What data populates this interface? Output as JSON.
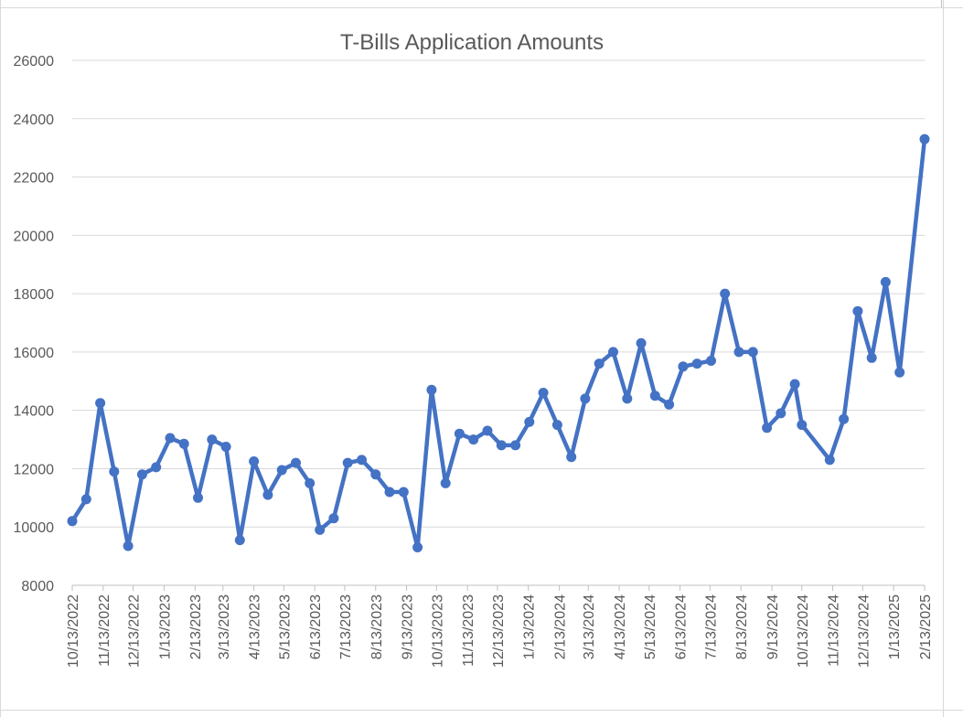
{
  "chart_data": {
    "type": "line",
    "title": "T-Bills Application Amounts",
    "xlabel": "",
    "ylabel": "",
    "ylim": [
      8000,
      26000
    ],
    "yticks": [
      8000,
      10000,
      12000,
      14000,
      16000,
      18000,
      20000,
      22000,
      24000,
      26000
    ],
    "grid": true,
    "legend": "none",
    "x_tick_labels": [
      "10/13/2022",
      "11/13/2022",
      "12/13/2022",
      "1/13/2023",
      "2/13/2023",
      "3/13/2023",
      "4/13/2023",
      "5/13/2023",
      "6/13/2023",
      "7/13/2023",
      "8/13/2023",
      "9/13/2023",
      "10/13/2023",
      "11/13/2023",
      "12/13/2023",
      "1/13/2024",
      "2/13/2024",
      "3/13/2024",
      "4/13/2024",
      "5/13/2024",
      "6/13/2024",
      "7/13/2024",
      "8/13/2024",
      "9/13/2024",
      "10/13/2024",
      "11/13/2024",
      "12/13/2024",
      "1/13/2025",
      "2/13/2025"
    ],
    "series": [
      {
        "color": "#4472c4",
        "points": [
          {
            "x": "2022-10-13",
            "y": 10200
          },
          {
            "x": "2022-10-27",
            "y": 10950
          },
          {
            "x": "2022-11-10",
            "y": 14250
          },
          {
            "x": "2022-11-24",
            "y": 11900
          },
          {
            "x": "2022-12-08",
            "y": 9350
          },
          {
            "x": "2022-12-22",
            "y": 11800
          },
          {
            "x": "2023-01-05",
            "y": 12050
          },
          {
            "x": "2023-01-19",
            "y": 13050
          },
          {
            "x": "2023-02-02",
            "y": 12850
          },
          {
            "x": "2023-02-16",
            "y": 11000
          },
          {
            "x": "2023-03-02",
            "y": 13000
          },
          {
            "x": "2023-03-16",
            "y": 12750
          },
          {
            "x": "2023-03-30",
            "y": 9550
          },
          {
            "x": "2023-04-13",
            "y": 12250
          },
          {
            "x": "2023-04-27",
            "y": 11100
          },
          {
            "x": "2023-05-11",
            "y": 11950
          },
          {
            "x": "2023-05-25",
            "y": 12200
          },
          {
            "x": "2023-06-08",
            "y": 11500
          },
          {
            "x": "2023-06-18",
            "y": 9900
          },
          {
            "x": "2023-07-02",
            "y": 10300
          },
          {
            "x": "2023-07-16",
            "y": 12200
          },
          {
            "x": "2023-07-30",
            "y": 12300
          },
          {
            "x": "2023-08-13",
            "y": 11800
          },
          {
            "x": "2023-08-27",
            "y": 11200
          },
          {
            "x": "2023-09-10",
            "y": 11200
          },
          {
            "x": "2023-09-24",
            "y": 9300
          },
          {
            "x": "2023-10-08",
            "y": 14700
          },
          {
            "x": "2023-10-22",
            "y": 11500
          },
          {
            "x": "2023-11-05",
            "y": 13200
          },
          {
            "x": "2023-11-19",
            "y": 13000
          },
          {
            "x": "2023-12-03",
            "y": 13300
          },
          {
            "x": "2023-12-17",
            "y": 12800
          },
          {
            "x": "2023-12-31",
            "y": 12800
          },
          {
            "x": "2024-01-14",
            "y": 13600
          },
          {
            "x": "2024-01-28",
            "y": 14600
          },
          {
            "x": "2024-02-11",
            "y": 13500
          },
          {
            "x": "2024-02-25",
            "y": 12400
          },
          {
            "x": "2024-03-10",
            "y": 14400
          },
          {
            "x": "2024-03-24",
            "y": 15600
          },
          {
            "x": "2024-04-07",
            "y": 16000
          },
          {
            "x": "2024-04-21",
            "y": 14400
          },
          {
            "x": "2024-05-05",
            "y": 16300
          },
          {
            "x": "2024-05-19",
            "y": 14500
          },
          {
            "x": "2024-06-02",
            "y": 14200
          },
          {
            "x": "2024-06-16",
            "y": 15500
          },
          {
            "x": "2024-06-30",
            "y": 15600
          },
          {
            "x": "2024-07-14",
            "y": 15700
          },
          {
            "x": "2024-07-28",
            "y": 18000
          },
          {
            "x": "2024-08-11",
            "y": 16000
          },
          {
            "x": "2024-08-25",
            "y": 16000
          },
          {
            "x": "2024-09-08",
            "y": 13400
          },
          {
            "x": "2024-09-22",
            "y": 13900
          },
          {
            "x": "2024-10-06",
            "y": 14900
          },
          {
            "x": "2024-10-13",
            "y": 13500
          },
          {
            "x": "2024-11-10",
            "y": 12300
          },
          {
            "x": "2024-11-24",
            "y": 13700
          },
          {
            "x": "2024-12-08",
            "y": 17400
          },
          {
            "x": "2024-12-22",
            "y": 15800
          },
          {
            "x": "2025-01-05",
            "y": 18400
          },
          {
            "x": "2025-01-19",
            "y": 15300
          },
          {
            "x": "2025-02-13",
            "y": 23300
          }
        ]
      }
    ]
  }
}
